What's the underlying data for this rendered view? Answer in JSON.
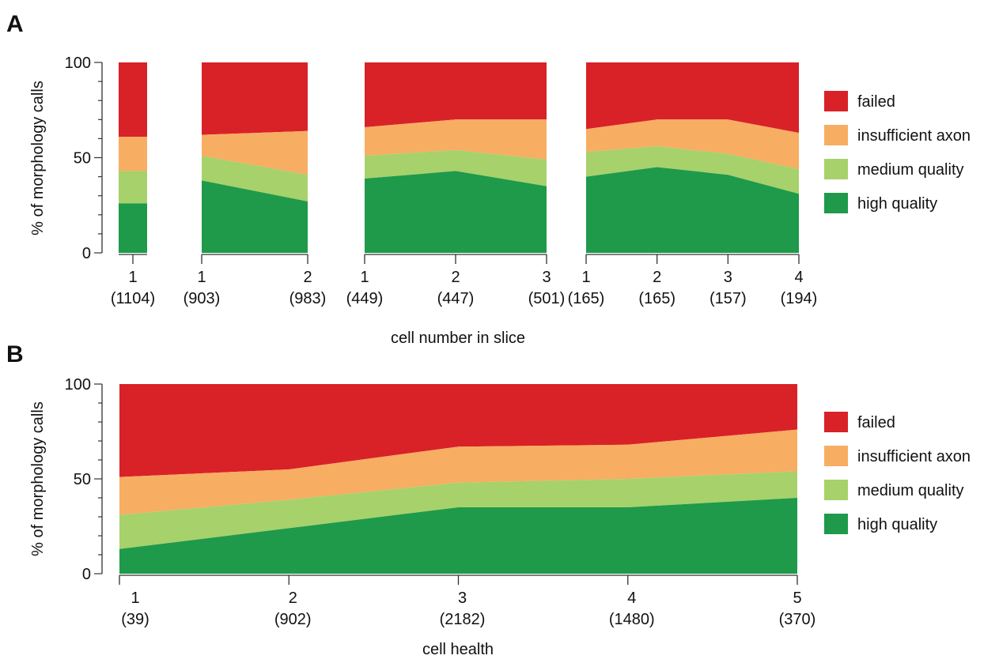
{
  "legend": [
    {
      "key": "failed",
      "label": "failed",
      "color": "#d92128"
    },
    {
      "key": "insufficient",
      "label": "insufficient axon",
      "color": "#f7ad62"
    },
    {
      "key": "medium",
      "label": "medium quality",
      "color": "#a7d16b"
    },
    {
      "key": "high",
      "label": "high quality",
      "color": "#1e9a4a"
    }
  ],
  "chart_data": [
    {
      "panel": "A",
      "type": "area",
      "xlabel": "cell number in slice",
      "ylabel": "% of morphology calls",
      "ylim": [
        0,
        100
      ],
      "yticks": [
        0,
        50,
        100
      ],
      "legend_position": "right",
      "groups": [
        {
          "points": [
            {
              "label": "1",
              "count": "(1104)",
              "high": 26,
              "medium_top": 43,
              "insufficient_top": 61,
              "failed_top": 100
            }
          ]
        },
        {
          "points": [
            {
              "label": "1",
              "count": "(903)",
              "high": 38,
              "medium_top": 51,
              "insufficient_top": 62,
              "failed_top": 100
            },
            {
              "label": "2",
              "count": "(983)",
              "high": 27,
              "medium_top": 41,
              "insufficient_top": 64,
              "failed_top": 100
            }
          ]
        },
        {
          "points": [
            {
              "label": "1",
              "count": "(449)",
              "high": 39,
              "medium_top": 51,
              "insufficient_top": 66,
              "failed_top": 100
            },
            {
              "label": "2",
              "count": "(447)",
              "high": 43,
              "medium_top": 54,
              "insufficient_top": 70,
              "failed_top": 100
            },
            {
              "label": "3",
              "count": "(501)",
              "high": 35,
              "medium_top": 49,
              "insufficient_top": 70,
              "failed_top": 100
            }
          ]
        },
        {
          "points": [
            {
              "label": "1",
              "count": "(165)",
              "high": 40,
              "medium_top": 53,
              "insufficient_top": 65,
              "failed_top": 100
            },
            {
              "label": "2",
              "count": "(165)",
              "high": 45,
              "medium_top": 56,
              "insufficient_top": 70,
              "failed_top": 100
            },
            {
              "label": "3",
              "count": "(157)",
              "high": 41,
              "medium_top": 52,
              "insufficient_top": 70,
              "failed_top": 100
            },
            {
              "label": "4",
              "count": "(194)",
              "high": 31,
              "medium_top": 44,
              "insufficient_top": 63,
              "failed_top": 100
            }
          ]
        }
      ]
    },
    {
      "panel": "B",
      "type": "area",
      "xlabel": "cell health",
      "ylabel": "% of morphology calls",
      "ylim": [
        0,
        100
      ],
      "yticks": [
        0,
        50,
        100
      ],
      "legend_position": "right",
      "points": [
        {
          "label": "1",
          "count": "(39)",
          "high": 13,
          "medium_top": 31,
          "insufficient_top": 51,
          "failed_top": 100
        },
        {
          "label": "2",
          "count": "(902)",
          "high": 24,
          "medium_top": 39,
          "insufficient_top": 55,
          "failed_top": 100
        },
        {
          "label": "3",
          "count": "(2182)",
          "high": 35,
          "medium_top": 48,
          "insufficient_top": 67,
          "failed_top": 100
        },
        {
          "label": "4",
          "count": "(1480)",
          "high": 35,
          "medium_top": 50,
          "insufficient_top": 68,
          "failed_top": 100
        },
        {
          "label": "5",
          "count": "(370)",
          "high": 40,
          "medium_top": 54,
          "insufficient_top": 76,
          "failed_top": 100
        }
      ]
    }
  ]
}
